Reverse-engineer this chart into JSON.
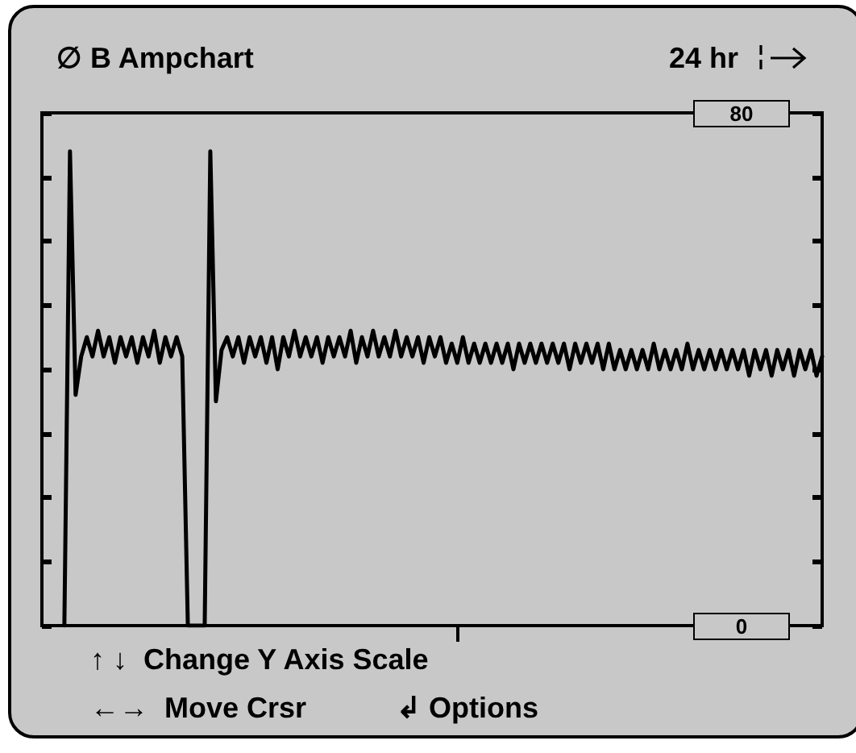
{
  "chart_data": {
    "type": "line",
    "title": "∅ B Ampchart",
    "subtitle": "24 hr",
    "annotations": [
      "↑ ↓  Change Y Axis Scale",
      "←→  Move Crsr",
      "↲ Options"
    ],
    "categories": [
      null,
      null,
      null,
      null,
      null,
      null,
      null,
      null,
      null,
      null,
      null,
      null,
      null,
      null,
      null,
      null,
      null,
      null,
      null,
      null,
      null,
      null,
      null,
      null,
      null,
      null,
      null,
      null,
      null,
      null,
      null,
      null,
      null,
      null,
      null,
      null,
      null,
      null,
      null,
      null,
      null,
      null,
      null,
      null,
      null,
      null,
      null,
      null,
      null,
      null,
      null,
      null,
      null,
      null,
      null,
      null,
      null,
      null,
      null,
      null,
      null,
      null,
      null,
      null,
      null,
      null,
      null,
      null,
      null,
      null,
      null,
      null,
      null,
      null,
      null,
      null,
      null,
      null,
      null,
      null,
      null,
      null,
      null,
      null,
      null,
      null,
      null,
      null,
      null,
      null,
      null,
      null,
      null,
      null,
      null,
      null,
      null,
      null,
      null,
      null,
      null,
      null,
      null,
      null,
      null,
      null,
      null,
      null,
      null,
      null,
      null,
      null,
      null,
      null,
      null,
      null,
      null,
      null,
      null,
      null,
      null,
      null,
      null,
      null,
      null,
      null,
      null,
      null,
      null,
      null,
      null,
      null,
      null,
      null,
      null,
      null,
      null,
      null,
      null,
      null
    ],
    "series": [
      {
        "color": "#000000",
        "values": [
          null,
          null,
          null,
          null,
          0,
          74,
          36,
          42,
          45,
          42,
          46,
          42,
          45,
          41,
          45,
          42,
          45,
          41,
          45,
          42,
          46,
          41,
          45,
          42,
          45,
          42,
          0,
          0,
          0,
          0,
          74,
          35,
          43,
          45,
          42,
          45,
          41,
          45,
          42,
          45,
          41,
          45,
          40,
          45,
          42,
          46,
          42,
          45,
          42,
          45,
          41,
          45,
          42,
          45,
          42,
          46,
          41,
          45,
          42,
          46,
          42,
          45,
          42,
          46,
          42,
          45,
          42,
          45,
          41,
          45,
          42,
          45,
          41,
          44,
          41,
          45,
          41,
          44,
          41,
          44,
          41,
          44,
          41,
          44,
          40,
          44,
          41,
          44,
          41,
          44,
          41,
          44,
          41,
          44,
          40,
          44,
          41,
          44,
          41,
          44,
          40,
          44,
          40,
          43,
          40,
          43,
          40,
          43,
          40,
          44,
          40,
          43,
          40,
          43,
          40,
          44,
          40,
          43,
          40,
          43,
          40,
          43,
          40,
          43,
          40,
          43,
          39,
          43,
          40,
          43,
          39,
          43,
          40,
          43,
          39,
          43,
          40,
          43,
          39,
          42
        ]
      }
    ],
    "ylim": [
      0,
      80
    ],
    "yticks": [
      {
        "value": 0,
        "label": "0"
      },
      {
        "value": 10,
        "label": null
      },
      {
        "value": 20,
        "label": null
      },
      {
        "value": 30,
        "label": null
      },
      {
        "value": 40,
        "label": null
      },
      {
        "value": 50,
        "label": null
      },
      {
        "value": 60,
        "label": null
      },
      {
        "value": 70,
        "label": null
      },
      {
        "value": 80,
        "label": "80"
      }
    ],
    "marker": "none",
    "line_style": "solid"
  }
}
